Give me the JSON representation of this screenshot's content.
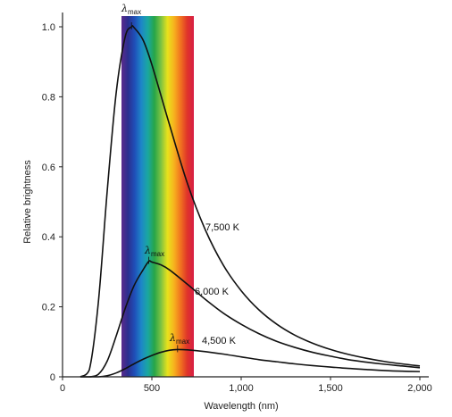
{
  "chart_data": {
    "type": "line",
    "xlabel": "Wavelength (nm)",
    "ylabel": "Relative brightness",
    "xlim": [
      0,
      2000
    ],
    "ylim": [
      0,
      1.0
    ],
    "x_ticks": [
      0,
      500,
      1000,
      1500,
      2000
    ],
    "x_tick_labels": [
      "0",
      "500",
      "1,000",
      "1,500",
      "2,000"
    ],
    "y_ticks": [
      0,
      0.2,
      0.4,
      0.6,
      0.8,
      1.0
    ],
    "y_tick_labels": [
      "0",
      "0.2",
      "0.4",
      "0.6",
      "0.8",
      "1.0"
    ],
    "grid": false,
    "visible_spectrum_nm": [
      330,
      735
    ],
    "visible_spectrum_colors": [
      "#5b2a8c",
      "#2b2f8f",
      "#1f4fb8",
      "#1d86c8",
      "#1aa7a0",
      "#27a548",
      "#7cc242",
      "#e8e21c",
      "#f7b21e",
      "#f0721f",
      "#e0342a",
      "#d71f45"
    ],
    "series": [
      {
        "name": "7,500 K",
        "temperature_K": 7500,
        "peak_label": "λmax",
        "peak_wavelength_nm": 386,
        "peak_value": 1.0,
        "x": [
          100,
          150,
          200,
          250,
          300,
          350,
          386,
          400,
          450,
          500,
          600,
          700,
          800,
          900,
          1000,
          1100,
          1200,
          1300,
          1400,
          1500,
          1600,
          1700,
          1800,
          1900,
          2000
        ],
        "values": [
          0.0,
          0.02,
          0.21,
          0.53,
          0.81,
          0.97,
          1.0,
          0.998,
          0.963,
          0.892,
          0.718,
          0.551,
          0.419,
          0.319,
          0.246,
          0.191,
          0.15,
          0.119,
          0.096,
          0.078,
          0.064,
          0.053,
          0.044,
          0.037,
          0.031
        ]
      },
      {
        "name": "6,000 K",
        "temperature_K": 6000,
        "peak_label": "λmax",
        "peak_wavelength_nm": 483,
        "peak_value": 0.33,
        "x": [
          100,
          150,
          200,
          250,
          300,
          350,
          400,
          450,
          483,
          500,
          550,
          600,
          700,
          800,
          900,
          1000,
          1100,
          1200,
          1300,
          1400,
          1500,
          1600,
          1700,
          1800,
          1900,
          2000
        ],
        "values": [
          0.0,
          0.0,
          0.007,
          0.045,
          0.116,
          0.194,
          0.26,
          0.305,
          0.33,
          0.328,
          0.32,
          0.305,
          0.264,
          0.221,
          0.182,
          0.15,
          0.123,
          0.101,
          0.084,
          0.07,
          0.059,
          0.049,
          0.042,
          0.036,
          0.031,
          0.026
        ]
      },
      {
        "name": "4,500 K",
        "temperature_K": 4500,
        "peak_label": "λmax",
        "peak_wavelength_nm": 644,
        "peak_value": 0.078,
        "x": [
          100,
          200,
          250,
          300,
          350,
          400,
          450,
          500,
          550,
          600,
          644,
          700,
          800,
          900,
          1000,
          1100,
          1200,
          1300,
          1400,
          1500,
          1600,
          1700,
          1800,
          1900,
          2000
        ],
        "values": [
          0.0,
          0.0,
          0.003,
          0.011,
          0.023,
          0.037,
          0.05,
          0.061,
          0.07,
          0.076,
          0.078,
          0.077,
          0.072,
          0.065,
          0.057,
          0.049,
          0.043,
          0.037,
          0.032,
          0.028,
          0.024,
          0.021,
          0.018,
          0.016,
          0.015
        ]
      }
    ]
  }
}
